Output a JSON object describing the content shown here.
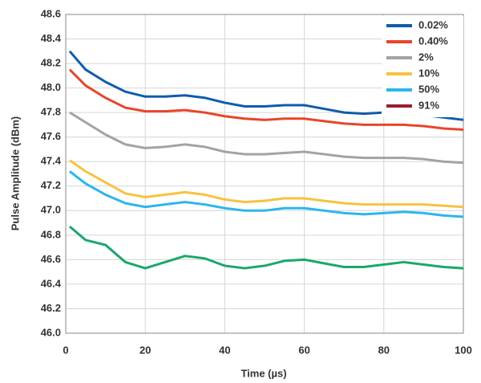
{
  "chart_data": {
    "type": "line",
    "xlabel": "Time (µs)",
    "ylabel": "Pulse Amplitude (dBm)",
    "x": [
      1,
      5,
      10,
      15,
      20,
      25,
      30,
      35,
      40,
      45,
      50,
      55,
      60,
      65,
      70,
      75,
      80,
      85,
      90,
      95,
      100
    ],
    "series": [
      {
        "name": "0.02%",
        "color": "#0f5cab",
        "values": [
          48.3,
          48.15,
          48.05,
          47.97,
          47.93,
          47.93,
          47.94,
          47.92,
          47.88,
          47.85,
          47.85,
          47.86,
          47.86,
          47.83,
          47.8,
          47.79,
          47.8,
          47.8,
          47.78,
          47.76,
          47.74
        ]
      },
      {
        "name": "0.40%",
        "color": "#e8452b",
        "values": [
          48.15,
          48.02,
          47.92,
          47.84,
          47.81,
          47.81,
          47.82,
          47.8,
          47.77,
          47.75,
          47.74,
          47.75,
          47.75,
          47.73,
          47.71,
          47.7,
          47.7,
          47.7,
          47.69,
          47.67,
          47.66
        ]
      },
      {
        "name": "2%",
        "color": "#a3a3a3",
        "values": [
          47.8,
          47.72,
          47.62,
          47.54,
          47.51,
          47.52,
          47.54,
          47.52,
          47.48,
          47.46,
          47.46,
          47.47,
          47.48,
          47.46,
          47.44,
          47.43,
          47.43,
          47.43,
          47.42,
          47.4,
          47.39
        ]
      },
      {
        "name": "10%",
        "color": "#f7c23f",
        "values": [
          47.41,
          47.32,
          47.23,
          47.14,
          47.11,
          47.13,
          47.15,
          47.13,
          47.09,
          47.07,
          47.08,
          47.1,
          47.1,
          47.08,
          47.06,
          47.05,
          47.05,
          47.05,
          47.05,
          47.04,
          47.03
        ]
      },
      {
        "name": "50%",
        "color": "#2bb6ec",
        "values": [
          47.32,
          47.22,
          47.13,
          47.06,
          47.03,
          47.05,
          47.07,
          47.05,
          47.02,
          47.0,
          47.0,
          47.02,
          47.02,
          47.0,
          46.98,
          46.97,
          46.98,
          46.99,
          46.98,
          46.96,
          46.95
        ]
      },
      {
        "name": "91%",
        "color": "#9b1c31",
        "line_color": "#1aa86b",
        "values": [
          46.87,
          46.76,
          46.72,
          46.58,
          46.53,
          46.58,
          46.63,
          46.61,
          46.55,
          46.53,
          46.55,
          46.59,
          46.6,
          46.57,
          46.54,
          46.54,
          46.56,
          46.58,
          46.56,
          46.54,
          46.53
        ]
      }
    ],
    "xlim": [
      0,
      100
    ],
    "xticks": [
      0,
      20,
      40,
      60,
      80,
      100
    ],
    "ylim": [
      46,
      48.6
    ],
    "yticks": [
      {
        "value": 46,
        "label": "46.0"
      },
      46.2,
      46.4,
      46.6,
      46.8,
      {
        "value": 47,
        "label": "47.0"
      },
      47.2,
      47.4,
      47.6,
      47.8,
      {
        "value": 48,
        "label": "48.0"
      },
      48.2,
      48.4,
      48.6
    ],
    "grid": true,
    "legend": "upper right"
  }
}
